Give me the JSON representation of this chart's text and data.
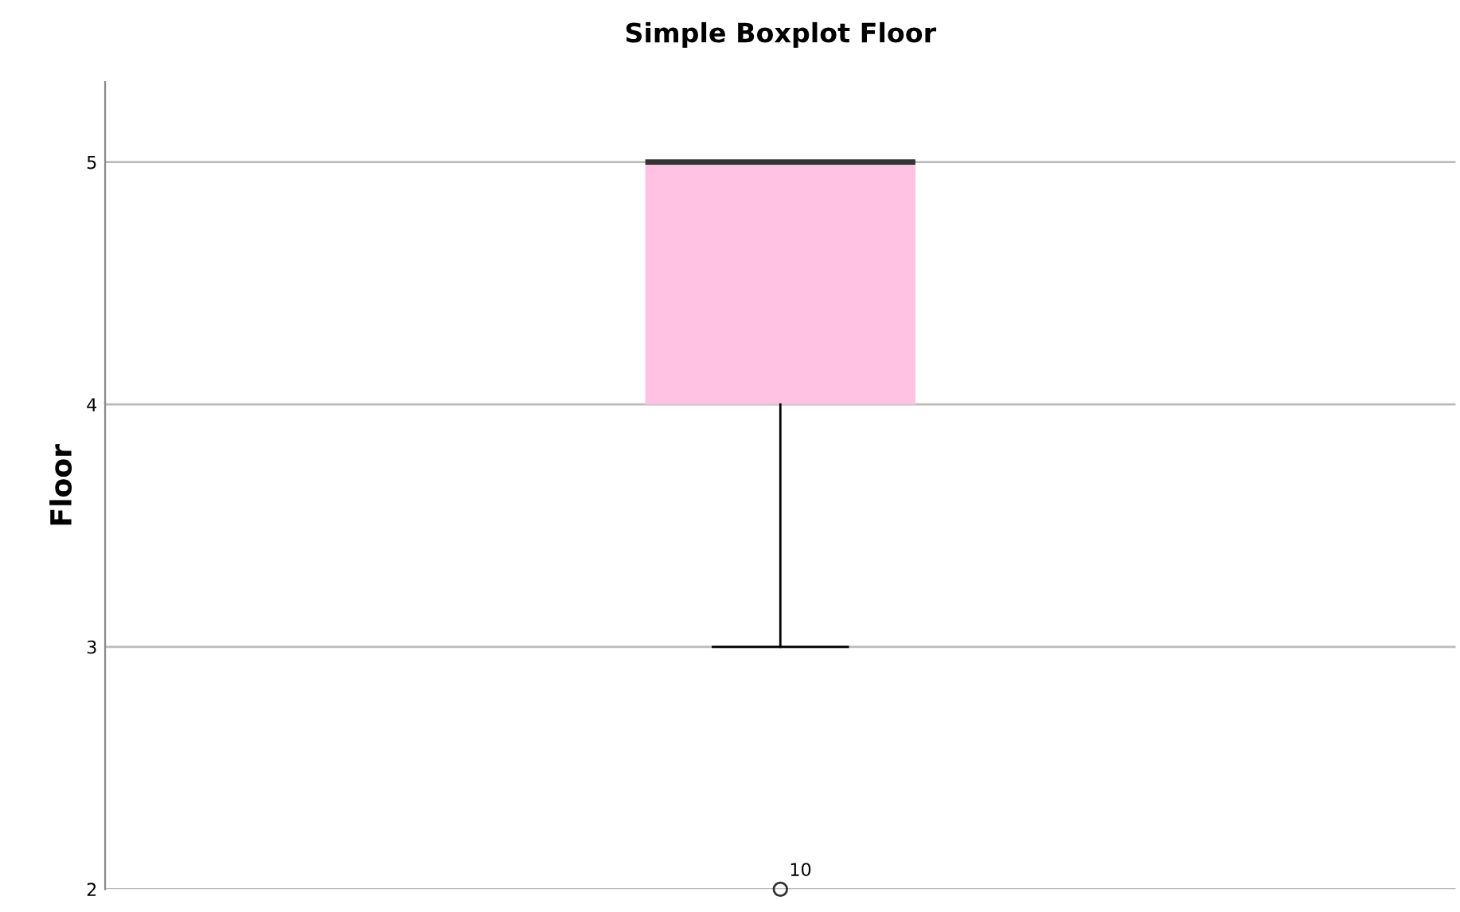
{
  "chart_data": {
    "type": "box",
    "title": "Simple Boxplot Floor",
    "ylabel": "Floor",
    "categories": [
      null
    ],
    "series": [
      {
        "color": "#ffc2e2",
        "boxes": [
          {
            "low": 3,
            "q1": 4,
            "median": 5,
            "q3": 5,
            "high": 5,
            "outliers": [
              2
            ]
          }
        ]
      }
    ],
    "annotations": [
      "10"
    ],
    "ylim": [
      2,
      5.33
    ],
    "yticks": [
      2,
      3,
      4,
      5
    ],
    "grid": "y",
    "tick_labels": "y"
  }
}
